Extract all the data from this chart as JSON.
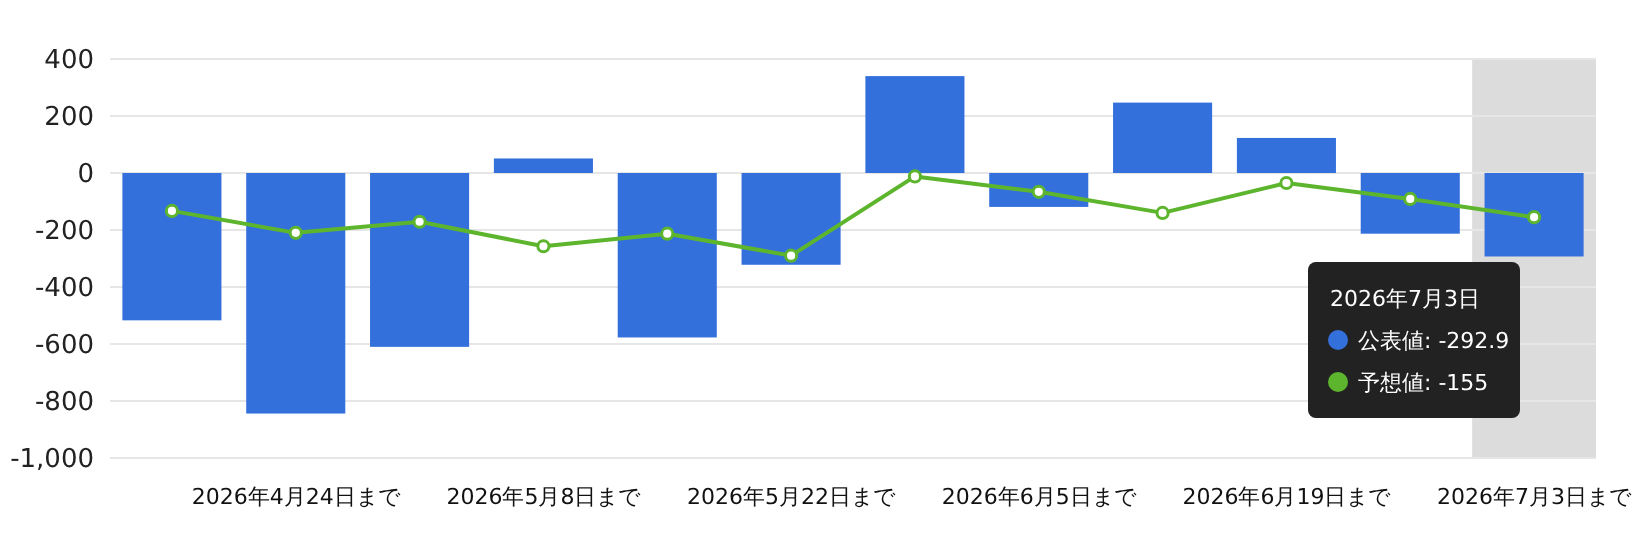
{
  "chart_data": {
    "type": "bar",
    "categories": [
      null,
      "2026年4月24日まで",
      null,
      "2026年5月8日まで",
      null,
      "2026年5月22日まで",
      null,
      "2026年6月5日まで",
      null,
      "2026年6月19日まで",
      null,
      "2026年7月3日まで"
    ],
    "series": [
      {
        "color": "#3370dc",
        "values": [
          -517,
          -844,
          -610,
          51,
          -577,
          -322,
          340,
          -119,
          247,
          123,
          -213,
          -292.9
        ]
      },
      {
        "type": "line",
        "color": "#5db52e",
        "marker": "circle",
        "values": [
          -133,
          -210,
          -171,
          -257,
          -213,
          -290,
          -12,
          -66,
          -140,
          -35,
          -91,
          -155
        ]
      }
    ],
    "ylim": [
      -1000,
      400
    ],
    "yticks": [
      {
        "value": -1000,
        "label": "-1,000"
      },
      -800,
      -600,
      -400,
      -200,
      0,
      200,
      400
    ],
    "grid": "y",
    "bands": [
      {
        "axis": "x",
        "from": "2026年7月3日まで",
        "to": "2026年7月3日まで",
        "color": "#dcdcdc"
      }
    ],
    "annotations": [
      "2026年7月3日",
      "公表値: -292.9",
      "予想値: -155"
    ]
  }
}
